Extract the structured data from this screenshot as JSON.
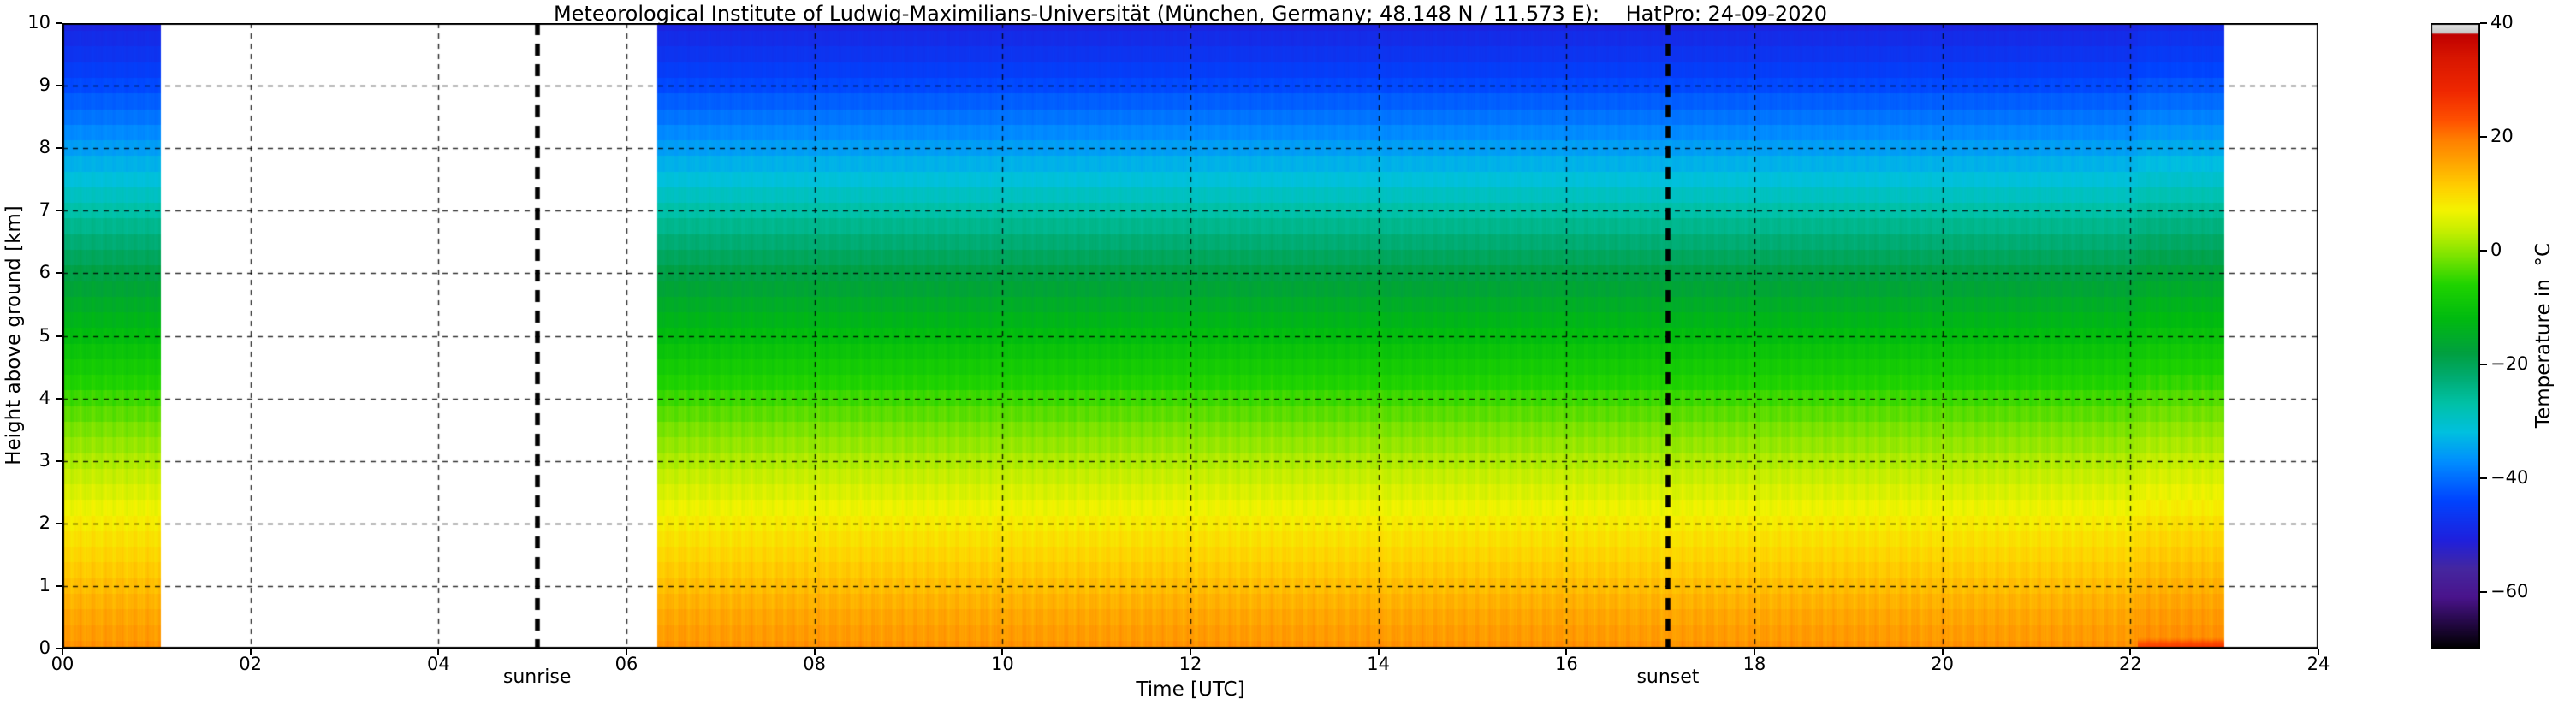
{
  "chart_data": {
    "type": "heatmap",
    "title": "Meteorological Institute of Ludwig-Maximilians-Universität (München, Germany; 48.148 N / 11.573 E):    HatPro: 24-09-2020",
    "xlabel": "Time [UTC]",
    "ylabel": "Height above ground [km]",
    "colorbar_label": "Temperature in  °C",
    "xlim": [
      0,
      24
    ],
    "ylim": [
      0,
      10
    ],
    "x_ticks": [
      "00",
      "02",
      "04",
      "06",
      "08",
      "10",
      "12",
      "14",
      "16",
      "18",
      "20",
      "22",
      "24"
    ],
    "y_ticks": [
      "0",
      "1",
      "2",
      "3",
      "4",
      "5",
      "6",
      "7",
      "8",
      "9",
      "10"
    ],
    "colorbar_range": [
      -70,
      40
    ],
    "colorbar_ticks": [
      {
        "value": 40,
        "label": "40"
      },
      {
        "value": 20,
        "label": "20"
      },
      {
        "value": 0,
        "label": "0"
      },
      {
        "value": -20,
        "label": "−20"
      },
      {
        "value": -40,
        "label": "−40"
      },
      {
        "value": -60,
        "label": "−60"
      }
    ],
    "grid": true,
    "grid_color": "#000000",
    "annotation_line_color": "#000000",
    "background_color": "#ffffff",
    "gap_color": "#ffffff",
    "segments": [
      {
        "start": 0.0,
        "end": 1.05
      },
      {
        "start": 6.33,
        "end": 23.0
      }
    ],
    "annotations": [
      {
        "label": "sunrise",
        "time": 5.05
      },
      {
        "label": "sunset",
        "time": 17.08
      }
    ],
    "profile": {
      "heights": [
        0,
        0.2,
        0.5,
        1,
        1.5,
        2,
        2.5,
        3,
        3.5,
        4,
        4.5,
        5,
        5.5,
        6,
        6.5,
        7,
        7.5,
        8,
        8.5,
        9,
        9.5,
        10
      ],
      "temps": [
        17.5,
        16.6,
        15.4,
        13,
        10.5,
        8,
        5,
        2,
        -1,
        -4.5,
        -8,
        -11.5,
        -15,
        -18.5,
        -22.5,
        -27,
        -31.5,
        -35.5,
        -39.5,
        -43.5,
        -47,
        -50
      ]
    },
    "events": [
      {
        "start": 22.08,
        "end": 23.0,
        "column_offset": 1.2,
        "surface_temp": 26,
        "surface_depth": 0.18
      }
    ],
    "colormap": [
      {
        "v": -70,
        "c": "#000000"
      },
      {
        "v": -66,
        "c": "#20073d"
      },
      {
        "v": -61,
        "c": "#4a148c"
      },
      {
        "v": -56,
        "c": "#4527a0"
      },
      {
        "v": -51,
        "c": "#2020dd"
      },
      {
        "v": -44,
        "c": "#0044ff"
      },
      {
        "v": -37,
        "c": "#0090ff"
      },
      {
        "v": -32,
        "c": "#00c0e0"
      },
      {
        "v": -27,
        "c": "#00c2a8"
      },
      {
        "v": -22,
        "c": "#00ab6e"
      },
      {
        "v": -18,
        "c": "#00a040"
      },
      {
        "v": -12,
        "c": "#00bb10"
      },
      {
        "v": -6,
        "c": "#20d400"
      },
      {
        "v": -1,
        "c": "#7ce400"
      },
      {
        "v": 3,
        "c": "#c0ee00"
      },
      {
        "v": 7,
        "c": "#f4f400"
      },
      {
        "v": 11,
        "c": "#ffd200"
      },
      {
        "v": 15,
        "c": "#ffaa00"
      },
      {
        "v": 19,
        "c": "#ff8400"
      },
      {
        "v": 23,
        "c": "#ff5000"
      },
      {
        "v": 28,
        "c": "#f02800"
      },
      {
        "v": 34,
        "c": "#d81600"
      },
      {
        "v": 38,
        "c": "#c00000"
      },
      {
        "v": 38.3,
        "c": "#c8c8c8"
      },
      {
        "v": 40,
        "c": "#e8e8e8"
      }
    ]
  }
}
